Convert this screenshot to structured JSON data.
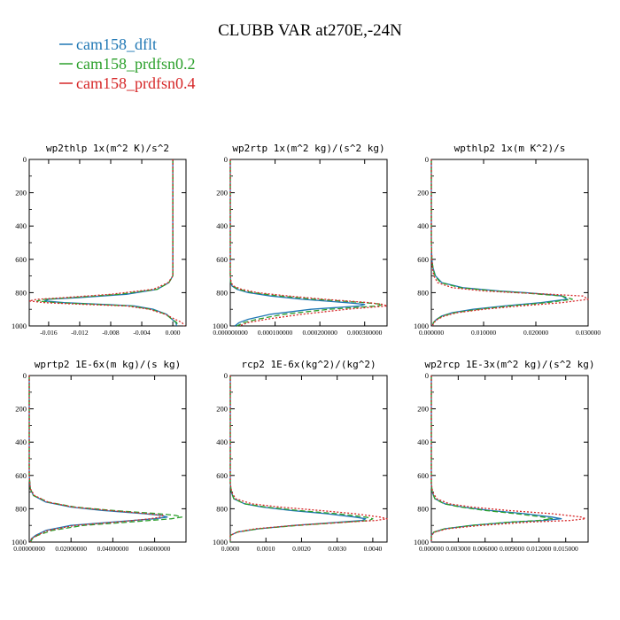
{
  "figure": {
    "title": "CLUBB VAR at270E,-24N",
    "legend": [
      {
        "label": "cam158_dflt",
        "color": "#1f77b4",
        "dash": "solid"
      },
      {
        "label": "cam158_prdfsn0.2",
        "color": "#2ca02c",
        "dash": "dashed"
      },
      {
        "label": "cam158_prdfsn0.4",
        "color": "#d62728",
        "dash": "dotted"
      }
    ]
  },
  "chart_data": [
    {
      "type": "line",
      "title": "wp2thlp  1x(m^2 K)/s^2",
      "y_ticks": [
        "0",
        "200",
        "400",
        "600",
        "800",
        "1000"
      ],
      "ylim": [
        1000,
        0
      ],
      "x_ticks": [
        "-0.016",
        "-0.012",
        "-0.008",
        "-0.004",
        "0.000"
      ],
      "x_tick_values": [
        -0.016,
        -0.012,
        -0.008,
        -0.004,
        0.0
      ],
      "xlim": [
        -0.0185,
        0.0017
      ],
      "y": [
        0,
        500,
        700,
        740,
        780,
        810,
        830,
        840,
        850,
        860,
        870,
        880,
        900,
        930,
        960,
        980,
        1000
      ],
      "series": [
        {
          "name": "cam158_dflt",
          "values": [
            0.0,
            0.0,
            0.0,
            -0.0005,
            -0.002,
            -0.006,
            -0.012,
            -0.016,
            -0.0165,
            -0.014,
            -0.009,
            -0.005,
            -0.0025,
            -0.0008,
            -0.0001,
            0.0004,
            0.0005
          ]
        },
        {
          "name": "cam158_prdfsn0.2",
          "values": [
            0.0,
            0.0,
            0.0,
            -0.0005,
            -0.002,
            -0.007,
            -0.013,
            -0.0165,
            -0.0175,
            -0.015,
            -0.01,
            -0.0055,
            -0.0028,
            -0.0009,
            -0.0001,
            0.0005,
            0.0006
          ]
        },
        {
          "name": "cam158_prdfsn0.4",
          "values": [
            0.0,
            0.0,
            0.0,
            -0.0006,
            -0.0025,
            -0.008,
            -0.014,
            -0.0175,
            -0.0185,
            -0.0165,
            -0.0115,
            -0.006,
            -0.003,
            -0.001,
            0.0003,
            0.0012,
            0.0015
          ]
        }
      ]
    },
    {
      "type": "line",
      "title": "wp2rtp  1x(m^2 kg)/(s^2 kg)",
      "y_ticks": [
        "0",
        "200",
        "400",
        "600",
        "800",
        "1000"
      ],
      "ylim": [
        1000,
        0
      ],
      "x_ticks": [
        "0.000000000",
        "0.000100000",
        "0.000200000",
        "0.000300000"
      ],
      "x_tick_values": [
        0.0,
        0.0001,
        0.0002,
        0.0003
      ],
      "xlim": [
        0.0,
        0.00035
      ],
      "y": [
        0,
        700,
        740,
        760,
        780,
        800,
        820,
        840,
        860,
        870,
        880,
        900,
        930,
        960,
        980,
        1000
      ],
      "series": [
        {
          "name": "cam158_dflt",
          "values": [
            0.0,
            0.0,
            1e-06,
            4e-06,
            1.5e-05,
            4e-05,
            9e-05,
            0.00016,
            0.00026,
            0.0003,
            0.00029,
            0.00018,
            9e-05,
            4e-05,
            2e-05,
            1e-05
          ]
        },
        {
          "name": "cam158_prdfsn0.2",
          "values": [
            0.0,
            0.0,
            1e-06,
            5e-06,
            1.8e-05,
            5e-05,
            0.00011,
            0.00019,
            0.0003,
            0.00034,
            0.00033,
            0.00022,
            0.00012,
            6e-05,
            3e-05,
            1.5e-05
          ]
        },
        {
          "name": "cam158_prdfsn0.4",
          "values": [
            0.0,
            0.0,
            2e-06,
            7e-06,
            2.5e-05,
            6e-05,
            0.00013,
            0.00021,
            0.00031,
            0.00034,
            0.00035,
            0.00026,
            0.00016,
            8e-05,
            4e-05,
            2e-05
          ]
        }
      ]
    },
    {
      "type": "line",
      "title": "wpthlp2  1x(m K^2)/s",
      "y_ticks": [
        "0",
        "200",
        "400",
        "600",
        "800",
        "1000"
      ],
      "ylim": [
        1000,
        0
      ],
      "x_ticks": [
        "0.000000",
        "0.010000",
        "0.020000",
        "0.030000"
      ],
      "x_tick_values": [
        0.0,
        0.01,
        0.02,
        0.03
      ],
      "xlim": [
        0.0,
        0.03
      ],
      "y": [
        0,
        500,
        600,
        650,
        700,
        740,
        770,
        790,
        800,
        810,
        820,
        840,
        860,
        880,
        900,
        920,
        940,
        960,
        980,
        1000
      ],
      "series": [
        {
          "name": "cam158_dflt",
          "values": [
            0.0,
            0.0,
            0.0001,
            0.0003,
            0.0008,
            0.002,
            0.006,
            0.013,
            0.018,
            0.022,
            0.025,
            0.026,
            0.021,
            0.014,
            0.008,
            0.004,
            0.002,
            0.001,
            0.0004,
            0.0002
          ]
        },
        {
          "name": "cam158_prdfsn0.2",
          "values": [
            0.0,
            0.0,
            0.0001,
            0.0003,
            0.0007,
            0.0018,
            0.0055,
            0.012,
            0.017,
            0.021,
            0.025,
            0.027,
            0.022,
            0.015,
            0.009,
            0.0045,
            0.0022,
            0.001,
            0.0004,
            0.0002
          ]
        },
        {
          "name": "cam158_prdfsn0.4",
          "values": [
            0.0,
            0.0,
            0.0001,
            0.0002,
            0.0005,
            0.0012,
            0.004,
            0.01,
            0.016,
            0.023,
            0.029,
            0.03,
            0.025,
            0.017,
            0.01,
            0.005,
            0.0025,
            0.0012,
            0.0005,
            0.0002
          ]
        }
      ]
    },
    {
      "type": "line",
      "title": "wprtp2  1E-6x(m kg)/(s kg)",
      "y_ticks": [
        "0",
        "200",
        "400",
        "600",
        "800",
        "1000"
      ],
      "ylim": [
        1000,
        0
      ],
      "x_ticks": [
        "0.00000000",
        "0.02000000",
        "0.04000000",
        "0.06000000"
      ],
      "x_tick_values": [
        0.0,
        0.02,
        0.04,
        0.06
      ],
      "xlim": [
        0.0,
        0.075
      ],
      "y": [
        0,
        600,
        680,
        720,
        760,
        790,
        810,
        830,
        840,
        850,
        860,
        880,
        900,
        930,
        960,
        980,
        1000
      ],
      "series": [
        {
          "name": "cam158_dflt",
          "values": [
            0.0,
            0.0,
            0.0005,
            0.002,
            0.008,
            0.02,
            0.035,
            0.055,
            0.063,
            0.066,
            0.06,
            0.04,
            0.02,
            0.008,
            0.003,
            0.001,
            0.0005
          ]
        },
        {
          "name": "cam158_prdfsn0.2",
          "values": [
            0.0,
            0.0,
            0.0005,
            0.002,
            0.009,
            0.022,
            0.04,
            0.062,
            0.07,
            0.073,
            0.068,
            0.048,
            0.026,
            0.011,
            0.004,
            0.0015,
            0.0006
          ]
        },
        {
          "name": "cam158_prdfsn0.4",
          "values": [
            0.0,
            0.0,
            0.0005,
            0.0025,
            0.009,
            0.021,
            0.038,
            0.057,
            0.064,
            0.063,
            0.058,
            0.042,
            0.022,
            0.009,
            0.0035,
            0.0012,
            0.0005
          ]
        }
      ]
    },
    {
      "type": "line",
      "title": "rcp2  1E-6x(kg^2)/(kg^2)",
      "y_ticks": [
        "0",
        "200",
        "400",
        "600",
        "800",
        "1000"
      ],
      "ylim": [
        1000,
        0
      ],
      "x_ticks": [
        "0.0000",
        "0.0010",
        "0.0020",
        "0.0030",
        "0.0040"
      ],
      "x_tick_values": [
        0.0,
        0.001,
        0.002,
        0.003,
        0.004
      ],
      "xlim": [
        0.0,
        0.0044
      ],
      "y": [
        0,
        650,
        700,
        740,
        770,
        790,
        810,
        830,
        850,
        860,
        870,
        880,
        900,
        920,
        940,
        960,
        1000
      ],
      "series": [
        {
          "name": "cam158_dflt",
          "values": [
            0.0,
            0.0,
            3e-05,
            0.0001,
            0.0004,
            0.0009,
            0.0017,
            0.0027,
            0.0035,
            0.0038,
            0.0037,
            0.0031,
            0.0018,
            0.0008,
            0.0002,
            0.0,
            0.0
          ]
        },
        {
          "name": "cam158_prdfsn0.2",
          "values": [
            0.0,
            0.0,
            3e-05,
            0.0001,
            0.0004,
            0.001,
            0.0019,
            0.003,
            0.0038,
            0.004,
            0.0039,
            0.0033,
            0.0019,
            0.0008,
            0.0002,
            0.0,
            0.0
          ]
        },
        {
          "name": "cam158_prdfsn0.4",
          "values": [
            0.0,
            0.0,
            4e-05,
            0.00015,
            0.0006,
            0.0014,
            0.0025,
            0.0035,
            0.0042,
            0.0044,
            0.0041,
            0.0033,
            0.0018,
            0.0007,
            0.0002,
            0.0,
            0.0
          ]
        }
      ]
    },
    {
      "type": "line",
      "title": "wp2rcp  1E-3x(m^2 kg)/(s^2 kg)",
      "y_ticks": [
        "0",
        "200",
        "400",
        "600",
        "800",
        "1000"
      ],
      "ylim": [
        1000,
        0
      ],
      "x_ticks": [
        "0.000000",
        "0.003000",
        "0.006000",
        "0.009000",
        "0.012000",
        "0.015000"
      ],
      "x_tick_values": [
        0.0,
        0.003,
        0.006,
        0.009,
        0.012,
        0.015
      ],
      "xlim": [
        0.0,
        0.0175
      ],
      "y": [
        0,
        650,
        700,
        740,
        770,
        790,
        810,
        830,
        850,
        860,
        870,
        880,
        900,
        920,
        940,
        960,
        1000
      ],
      "series": [
        {
          "name": "cam158_dflt",
          "values": [
            0.0,
            0.0,
            0.0001,
            0.0004,
            0.0015,
            0.0035,
            0.0065,
            0.0105,
            0.0135,
            0.0145,
            0.0125,
            0.009,
            0.0045,
            0.0015,
            0.0003,
            0.0,
            0.0
          ]
        },
        {
          "name": "cam158_prdfsn0.2",
          "values": [
            0.0,
            0.0,
            0.0001,
            0.0004,
            0.0014,
            0.0033,
            0.006,
            0.0095,
            0.0125,
            0.0135,
            0.012,
            0.0088,
            0.0045,
            0.0015,
            0.0003,
            0.0,
            0.0
          ]
        },
        {
          "name": "cam158_prdfsn0.4",
          "values": [
            0.0,
            0.0,
            0.00015,
            0.0006,
            0.002,
            0.0045,
            0.0085,
            0.0135,
            0.0168,
            0.0172,
            0.0155,
            0.011,
            0.0055,
            0.0018,
            0.0004,
            0.0,
            0.0
          ]
        }
      ]
    }
  ]
}
